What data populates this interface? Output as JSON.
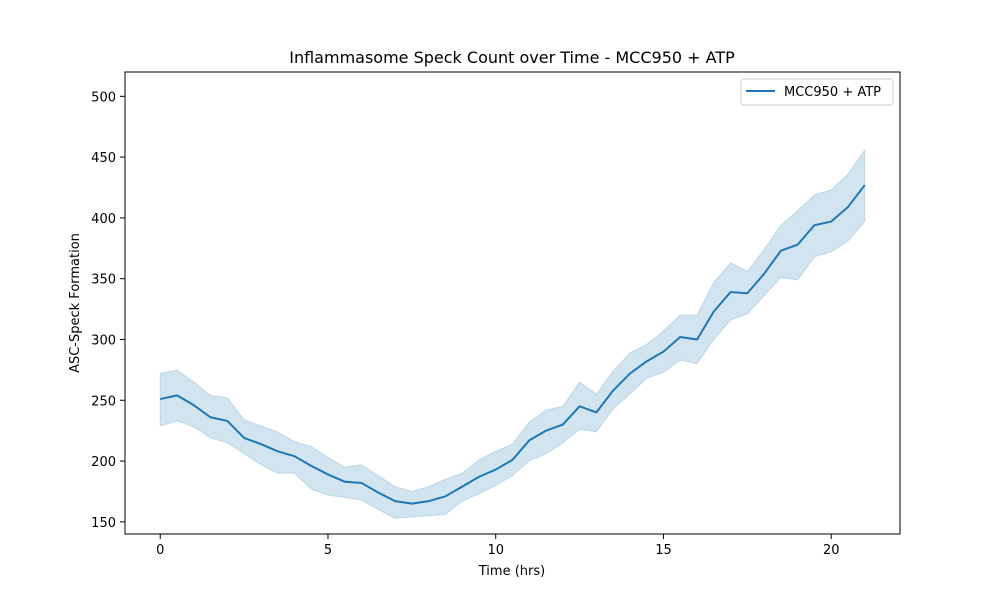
{
  "chart_data": {
    "type": "line",
    "title": "Inflammasome Speck Count over Time - MCC950 + ATP",
    "xlabel": "Time (hrs)",
    "ylabel": "ASC-Speck Formation",
    "xlim": [
      -1.05,
      22.05
    ],
    "ylim": [
      140,
      520
    ],
    "xticks": [
      0,
      5,
      10,
      15,
      20
    ],
    "yticks": [
      150,
      200,
      250,
      300,
      350,
      400,
      450,
      500
    ],
    "grid": false,
    "legend": {
      "position": "top-right",
      "entries": [
        "MCC950 + ATP"
      ]
    },
    "series": [
      {
        "name": "MCC950 + ATP",
        "color": "#1f77b4",
        "band_color": "#1f77b4",
        "x": [
          0,
          0.5,
          1,
          1.5,
          2,
          2.5,
          3,
          3.5,
          4,
          4.5,
          5,
          5.5,
          6,
          6.5,
          7,
          7.5,
          8,
          8.5,
          9,
          9.5,
          10,
          10.5,
          11,
          11.5,
          12,
          12.5,
          13,
          13.5,
          14,
          14.5,
          15,
          15.5,
          16,
          16.5,
          17,
          17.5,
          18,
          18.5,
          19,
          19.5,
          20,
          20.5,
          21
        ],
        "y": [
          251,
          254,
          246,
          236,
          233,
          219,
          214,
          208,
          204,
          196,
          189,
          183,
          182,
          174,
          167,
          165,
          167,
          171,
          179,
          187,
          193,
          201,
          217,
          225,
          230,
          245,
          240,
          258,
          272,
          282,
          290,
          302,
          300,
          323,
          339,
          338,
          354,
          373,
          378,
          394,
          397,
          409,
          427
        ],
        "lower": [
          229,
          233,
          228,
          219,
          215,
          206,
          197,
          190,
          190,
          177,
          172,
          170,
          168,
          160,
          153,
          154,
          155,
          156,
          167,
          173,
          180,
          188,
          200,
          206,
          215,
          226,
          224,
          243,
          255,
          268,
          273,
          283,
          280,
          300,
          316,
          321,
          336,
          351,
          349,
          368,
          372,
          381,
          397
        ],
        "upper": [
          272,
          275,
          265,
          254,
          252,
          234,
          229,
          224,
          216,
          212,
          203,
          195,
          197,
          188,
          179,
          175,
          179,
          185,
          190,
          201,
          208,
          214,
          232,
          242,
          245,
          265,
          255,
          274,
          289,
          296,
          307,
          320,
          320,
          347,
          363,
          356,
          374,
          394,
          406,
          419,
          423,
          436,
          456
        ]
      }
    ]
  }
}
